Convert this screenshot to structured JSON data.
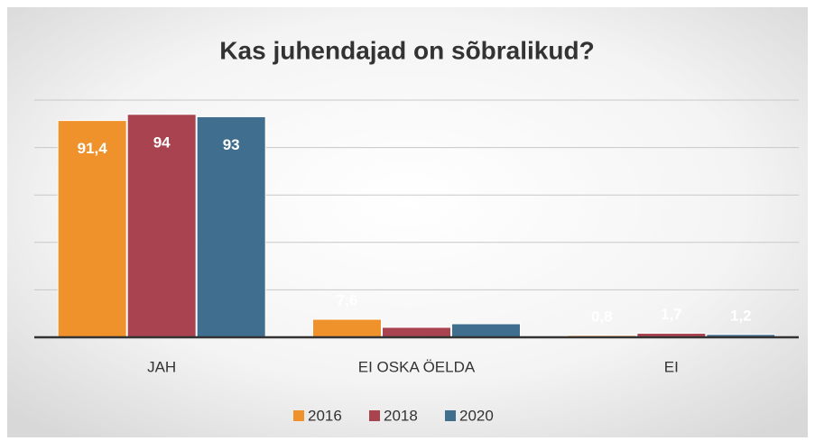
{
  "chart_data": {
    "type": "bar",
    "title": "Kas juhendajad on sõbralikud?",
    "categories": [
      "JAH",
      "EI OSKA ÖELDA",
      "EI"
    ],
    "series": [
      {
        "name": "2016",
        "color": "#f0922b",
        "values": [
          91.4,
          7.6,
          0.8
        ],
        "value_labels": [
          "91,4",
          "7,6",
          "0,8"
        ]
      },
      {
        "name": "2018",
        "color": "#a8434f",
        "values": [
          94,
          4.2,
          1.7
        ],
        "value_labels": [
          "94",
          null,
          "1,7"
        ]
      },
      {
        "name": "2020",
        "color": "#3f6e8f",
        "values": [
          93,
          5.7,
          1.2
        ],
        "value_labels": [
          "93",
          null,
          "1,2"
        ]
      }
    ],
    "ylim": [
      0,
      100
    ],
    "yticks": [
      0,
      20,
      40,
      60,
      80,
      100
    ],
    "grid": true,
    "legend": "bottom"
  }
}
